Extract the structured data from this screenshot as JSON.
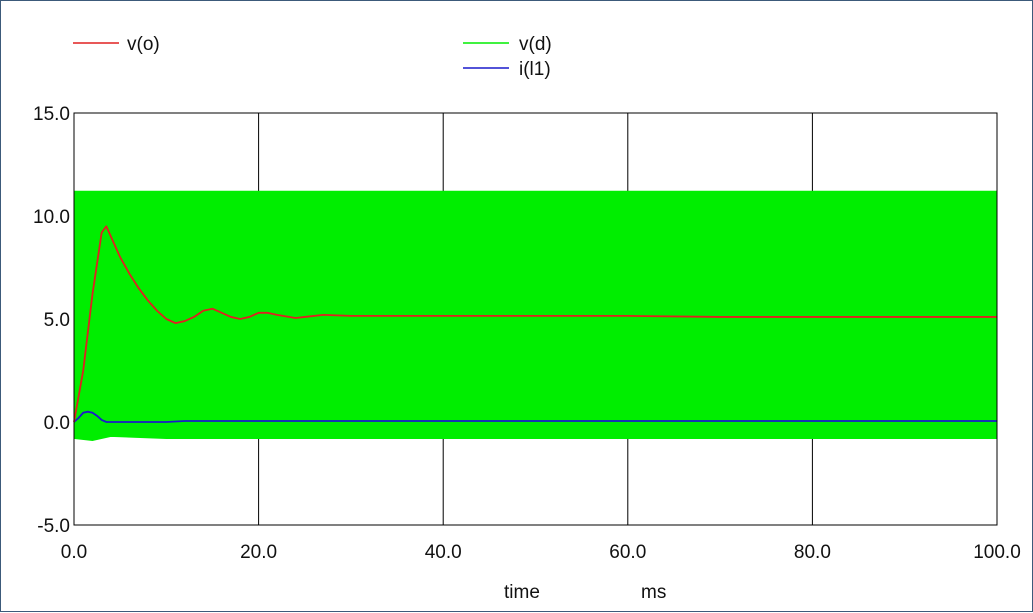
{
  "chart_data": {
    "type": "line",
    "title": "",
    "xlabel": "time",
    "xunit": "ms",
    "ylabel": "",
    "xlim": [
      0,
      100
    ],
    "ylim": [
      -5,
      15
    ],
    "x_ticks": [
      0,
      20,
      40,
      60,
      80,
      100
    ],
    "y_ticks": [
      -5,
      0,
      5,
      10,
      15
    ],
    "x_tick_labels": [
      "0.0",
      "20.0",
      "40.0",
      "60.0",
      "80.0",
      "100.0"
    ],
    "y_tick_labels": [
      "-5.0",
      "0.0",
      "5.0",
      "10.0",
      "15.0"
    ],
    "grid": true,
    "legend_placement": "top",
    "series": [
      {
        "name": "v(o)",
        "color": "#e02020",
        "x": [
          0,
          1,
          2,
          3,
          3.5,
          4,
          5,
          6,
          7,
          8,
          9,
          10,
          11,
          12,
          13,
          14,
          15,
          16,
          17,
          18,
          19,
          20,
          21,
          22,
          24,
          25,
          27,
          30,
          35,
          40,
          45,
          50,
          55,
          60,
          70,
          80,
          90,
          100
        ],
        "y": [
          0,
          2.5,
          6.2,
          9.2,
          9.5,
          9.0,
          8.0,
          7.2,
          6.5,
          5.9,
          5.4,
          5.0,
          4.8,
          4.9,
          5.1,
          5.4,
          5.5,
          5.3,
          5.1,
          5.0,
          5.1,
          5.3,
          5.3,
          5.2,
          5.05,
          5.1,
          5.2,
          5.15,
          5.15,
          5.15,
          5.15,
          5.15,
          5.15,
          5.15,
          5.1,
          5.1,
          5.1,
          5.1
        ]
      },
      {
        "name": "v(d)",
        "color": "#00ee00",
        "fill_band": true,
        "upper": {
          "x": [
            0,
            10,
            10.5,
            100
          ],
          "y": [
            11.2,
            11.2,
            11.2,
            11.2
          ]
        },
        "lower": {
          "x": [
            0,
            2,
            4,
            10,
            100
          ],
          "y": [
            -0.8,
            -0.9,
            -0.7,
            -0.8,
            -0.8
          ]
        }
      },
      {
        "name": "i(l1)",
        "color": "#1a1acc",
        "x": [
          0,
          0.5,
          1,
          1.5,
          2,
          2.5,
          3,
          3.5,
          5,
          10,
          12,
          20,
          30,
          40,
          50,
          60,
          80,
          100
        ],
        "y": [
          0,
          0.2,
          0.45,
          0.5,
          0.45,
          0.3,
          0.1,
          0,
          0,
          0,
          0.05,
          0.05,
          0.05,
          0.05,
          0.05,
          0.05,
          0.05,
          0.05
        ]
      }
    ]
  }
}
